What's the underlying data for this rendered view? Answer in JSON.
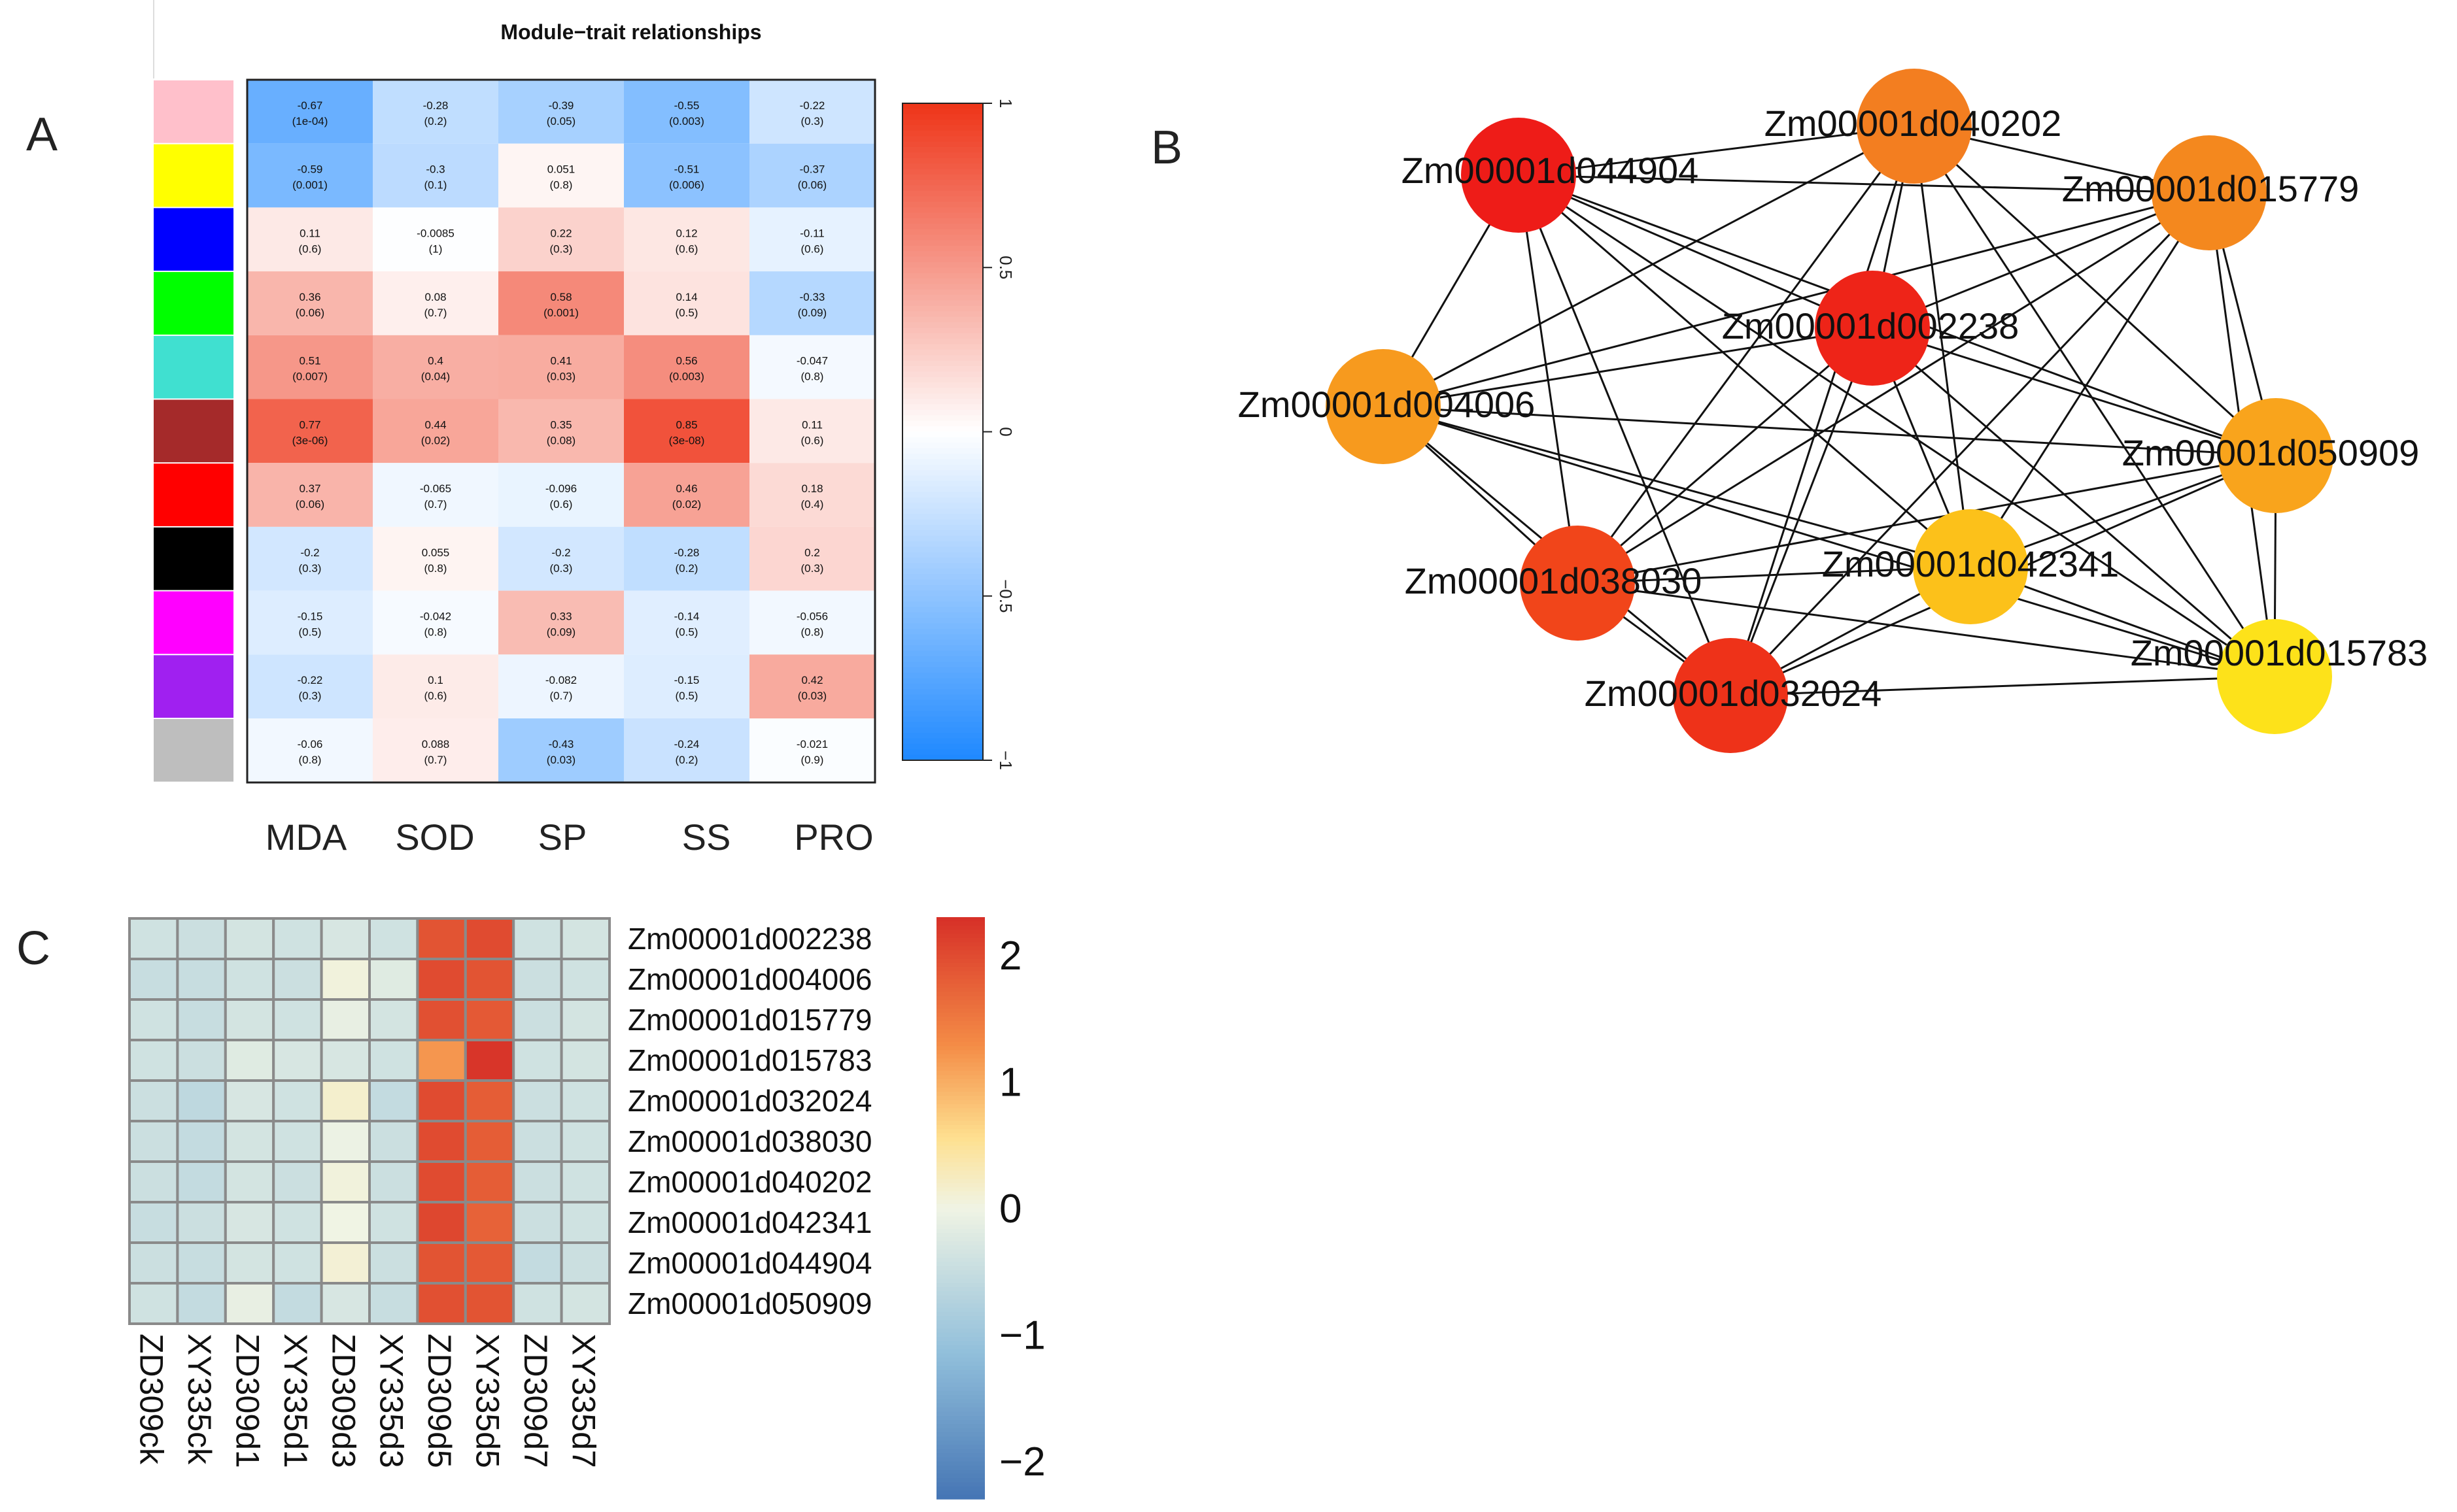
{
  "panel_labels": {
    "a": "A",
    "b": "B",
    "c": "C"
  },
  "chart_data": [
    {
      "type": "heatmap",
      "panel": "A",
      "title": "Module−trait relationships",
      "columns": [
        "MDA",
        "SOD",
        "SP",
        "SS",
        "PRO"
      ],
      "modules": [
        "pink",
        "yellow",
        "blue",
        "green",
        "turquoise",
        "brown",
        "red",
        "black",
        "magenta",
        "purple",
        "grey"
      ],
      "module_colors": [
        "#ffc0cb",
        "#ffff00",
        "#0000ff",
        "#00ff00",
        "#40e0d0",
        "#a52a2a",
        "#ff0000",
        "#000000",
        "#ff00ff",
        "#a020f0",
        "#bebebe"
      ],
      "values": [
        [
          -0.67,
          -0.28,
          -0.39,
          -0.55,
          -0.22
        ],
        [
          -0.59,
          -0.3,
          0.051,
          -0.51,
          -0.37
        ],
        [
          0.11,
          -0.0085,
          0.22,
          0.12,
          -0.11
        ],
        [
          0.36,
          0.08,
          0.58,
          0.14,
          -0.33
        ],
        [
          0.51,
          0.4,
          0.41,
          0.56,
          -0.047
        ],
        [
          0.77,
          0.44,
          0.35,
          0.85,
          0.11
        ],
        [
          0.37,
          -0.065,
          -0.096,
          0.46,
          0.18
        ],
        [
          -0.2,
          0.055,
          -0.2,
          -0.28,
          0.2
        ],
        [
          -0.15,
          -0.042,
          0.33,
          -0.14,
          -0.056
        ],
        [
          -0.22,
          0.1,
          -0.082,
          -0.15,
          0.42
        ],
        [
          -0.06,
          0.088,
          -0.43,
          -0.24,
          -0.021
        ]
      ],
      "value_labels": [
        [
          "-0.67",
          "-0.28",
          "-0.39",
          "-0.55",
          "-0.22"
        ],
        [
          "-0.59",
          "-0.3",
          "0.051",
          "-0.51",
          "-0.37"
        ],
        [
          "0.11",
          "-0.0085",
          "0.22",
          "0.12",
          "-0.11"
        ],
        [
          "0.36",
          "0.08",
          "0.58",
          "0.14",
          "-0.33"
        ],
        [
          "0.51",
          "0.4",
          "0.41",
          "0.56",
          "-0.047"
        ],
        [
          "0.77",
          "0.44",
          "0.35",
          "0.85",
          "0.11"
        ],
        [
          "0.37",
          "-0.065",
          "-0.096",
          "0.46",
          "0.18"
        ],
        [
          "-0.2",
          "0.055",
          "-0.2",
          "-0.28",
          "0.2"
        ],
        [
          "-0.15",
          "-0.042",
          "0.33",
          "-0.14",
          "-0.056"
        ],
        [
          "-0.22",
          "0.1",
          "-0.082",
          "-0.15",
          "0.42"
        ],
        [
          "-0.06",
          "0.088",
          "-0.43",
          "-0.24",
          "-0.021"
        ]
      ],
      "pvalues": [
        [
          "(1e-04)",
          "(0.2)",
          "(0.05)",
          "(0.003)",
          "(0.3)"
        ],
        [
          "(0.001)",
          "(0.1)",
          "(0.8)",
          "(0.006)",
          "(0.06)"
        ],
        [
          "(0.6)",
          "(1)",
          "(0.3)",
          "(0.6)",
          "(0.6)"
        ],
        [
          "(0.06)",
          "(0.7)",
          "(0.001)",
          "(0.5)",
          "(0.09)"
        ],
        [
          "(0.007)",
          "(0.04)",
          "(0.03)",
          "(0.003)",
          "(0.8)"
        ],
        [
          "(3e-06)",
          "(0.02)",
          "(0.08)",
          "(3e-08)",
          "(0.6)"
        ],
        [
          "(0.06)",
          "(0.7)",
          "(0.6)",
          "(0.02)",
          "(0.4)"
        ],
        [
          "(0.3)",
          "(0.8)",
          "(0.3)",
          "(0.2)",
          "(0.3)"
        ],
        [
          "(0.5)",
          "(0.8)",
          "(0.09)",
          "(0.5)",
          "(0.8)"
        ],
        [
          "(0.3)",
          "(0.6)",
          "(0.7)",
          "(0.5)",
          "(0.03)"
        ],
        [
          "(0.8)",
          "(0.7)",
          "(0.03)",
          "(0.2)",
          "(0.9)"
        ]
      ],
      "colorbar": {
        "range": [
          -1,
          1
        ],
        "tick_values": [
          1,
          0.5,
          0,
          -0.5,
          -1
        ],
        "tick_labels": [
          "1",
          "0.5",
          "0",
          "−0.5",
          "−1"
        ]
      }
    },
    {
      "type": "network",
      "panel": "B",
      "nodes": [
        {
          "id": "Zm00001d044904",
          "color": "#ee1c18"
        },
        {
          "id": "Zm00001d040202",
          "color": "#f37e20"
        },
        {
          "id": "Zm00001d015779",
          "color": "#f4881e"
        },
        {
          "id": "Zm00001d002238",
          "color": "#ee2418"
        },
        {
          "id": "Zm00001d004006",
          "color": "#f79a1e"
        },
        {
          "id": "Zm00001d050909",
          "color": "#f9a41c"
        },
        {
          "id": "Zm00001d038030",
          "color": "#f1451a"
        },
        {
          "id": "Zm00001d042341",
          "color": "#fcc11a"
        },
        {
          "id": "Zm00001d015783",
          "color": "#fde21a"
        },
        {
          "id": "Zm00001d032024",
          "color": "#ee3219"
        }
      ],
      "edges": [
        [
          "Zm00001d044904",
          "Zm00001d040202"
        ],
        [
          "Zm00001d044904",
          "Zm00001d015779"
        ],
        [
          "Zm00001d044904",
          "Zm00001d002238"
        ],
        [
          "Zm00001d044904",
          "Zm00001d004006"
        ],
        [
          "Zm00001d044904",
          "Zm00001d050909"
        ],
        [
          "Zm00001d044904",
          "Zm00001d038030"
        ],
        [
          "Zm00001d044904",
          "Zm00001d042341"
        ],
        [
          "Zm00001d044904",
          "Zm00001d015783"
        ],
        [
          "Zm00001d044904",
          "Zm00001d032024"
        ],
        [
          "Zm00001d040202",
          "Zm00001d015779"
        ],
        [
          "Zm00001d040202",
          "Zm00001d002238"
        ],
        [
          "Zm00001d040202",
          "Zm00001d004006"
        ],
        [
          "Zm00001d040202",
          "Zm00001d050909"
        ],
        [
          "Zm00001d040202",
          "Zm00001d038030"
        ],
        [
          "Zm00001d040202",
          "Zm00001d042341"
        ],
        [
          "Zm00001d040202",
          "Zm00001d015783"
        ],
        [
          "Zm00001d040202",
          "Zm00001d032024"
        ],
        [
          "Zm00001d015779",
          "Zm00001d002238"
        ],
        [
          "Zm00001d015779",
          "Zm00001d004006"
        ],
        [
          "Zm00001d015779",
          "Zm00001d050909"
        ],
        [
          "Zm00001d015779",
          "Zm00001d038030"
        ],
        [
          "Zm00001d015779",
          "Zm00001d042341"
        ],
        [
          "Zm00001d015779",
          "Zm00001d015783"
        ],
        [
          "Zm00001d015779",
          "Zm00001d032024"
        ],
        [
          "Zm00001d002238",
          "Zm00001d004006"
        ],
        [
          "Zm00001d002238",
          "Zm00001d050909"
        ],
        [
          "Zm00001d002238",
          "Zm00001d038030"
        ],
        [
          "Zm00001d002238",
          "Zm00001d042341"
        ],
        [
          "Zm00001d002238",
          "Zm00001d015783"
        ],
        [
          "Zm00001d002238",
          "Zm00001d032024"
        ],
        [
          "Zm00001d004006",
          "Zm00001d050909"
        ],
        [
          "Zm00001d004006",
          "Zm00001d038030"
        ],
        [
          "Zm00001d004006",
          "Zm00001d042341"
        ],
        [
          "Zm00001d004006",
          "Zm00001d015783"
        ],
        [
          "Zm00001d004006",
          "Zm00001d032024"
        ],
        [
          "Zm00001d050909",
          "Zm00001d038030"
        ],
        [
          "Zm00001d050909",
          "Zm00001d042341"
        ],
        [
          "Zm00001d050909",
          "Zm00001d015783"
        ],
        [
          "Zm00001d050909",
          "Zm00001d032024"
        ],
        [
          "Zm00001d038030",
          "Zm00001d042341"
        ],
        [
          "Zm00001d038030",
          "Zm00001d015783"
        ],
        [
          "Zm00001d038030",
          "Zm00001d032024"
        ],
        [
          "Zm00001d042341",
          "Zm00001d015783"
        ],
        [
          "Zm00001d042341",
          "Zm00001d032024"
        ],
        [
          "Zm00001d015783",
          "Zm00001d032024"
        ]
      ]
    },
    {
      "type": "heatmap",
      "panel": "C",
      "rows": [
        "Zm00001d002238",
        "Zm00001d004006",
        "Zm00001d015779",
        "Zm00001d015783",
        "Zm00001d032024",
        "Zm00001d038030",
        "Zm00001d040202",
        "Zm00001d042341",
        "Zm00001d044904",
        "Zm00001d050909"
      ],
      "columns": [
        "ZD309ck",
        "XY335ck",
        "ZD309d1",
        "XY335d1",
        "ZD309d3",
        "XY335d3",
        "ZD309d5",
        "XY335d5",
        "ZD309d7",
        "XY335d7"
      ],
      "values": [
        [
          -0.4,
          -0.45,
          -0.35,
          -0.4,
          -0.3,
          -0.4,
          1.9,
          2.0,
          -0.4,
          -0.35
        ],
        [
          -0.5,
          -0.5,
          -0.4,
          -0.45,
          0.05,
          -0.2,
          2.0,
          1.9,
          -0.45,
          -0.4
        ],
        [
          -0.4,
          -0.5,
          -0.35,
          -0.4,
          -0.1,
          -0.35,
          1.95,
          1.85,
          -0.45,
          -0.35
        ],
        [
          -0.4,
          -0.45,
          -0.2,
          -0.3,
          -0.3,
          -0.4,
          1.2,
          2.25,
          -0.4,
          -0.35
        ],
        [
          -0.45,
          -0.6,
          -0.3,
          -0.4,
          0.15,
          -0.55,
          2.0,
          1.8,
          -0.45,
          -0.4
        ],
        [
          -0.45,
          -0.55,
          -0.35,
          -0.4,
          -0.05,
          -0.45,
          2.0,
          1.8,
          -0.45,
          -0.4
        ],
        [
          -0.45,
          -0.55,
          -0.35,
          -0.45,
          0.05,
          -0.45,
          2.0,
          1.8,
          -0.45,
          -0.4
        ],
        [
          -0.5,
          -0.45,
          -0.3,
          -0.4,
          0.0,
          -0.4,
          2.05,
          1.75,
          -0.45,
          -0.4
        ],
        [
          -0.45,
          -0.5,
          -0.35,
          -0.4,
          0.1,
          -0.45,
          1.9,
          1.85,
          -0.55,
          -0.45
        ],
        [
          -0.4,
          -0.55,
          -0.1,
          -0.55,
          -0.3,
          -0.5,
          1.95,
          1.9,
          -0.4,
          -0.35
        ]
      ],
      "colorbar": {
        "range": [
          -2.3,
          2.3
        ],
        "tick_values": [
          2,
          1,
          0,
          -1,
          -2
        ],
        "tick_labels": [
          "2",
          "1",
          "0",
          "−1",
          "−2"
        ]
      }
    }
  ]
}
